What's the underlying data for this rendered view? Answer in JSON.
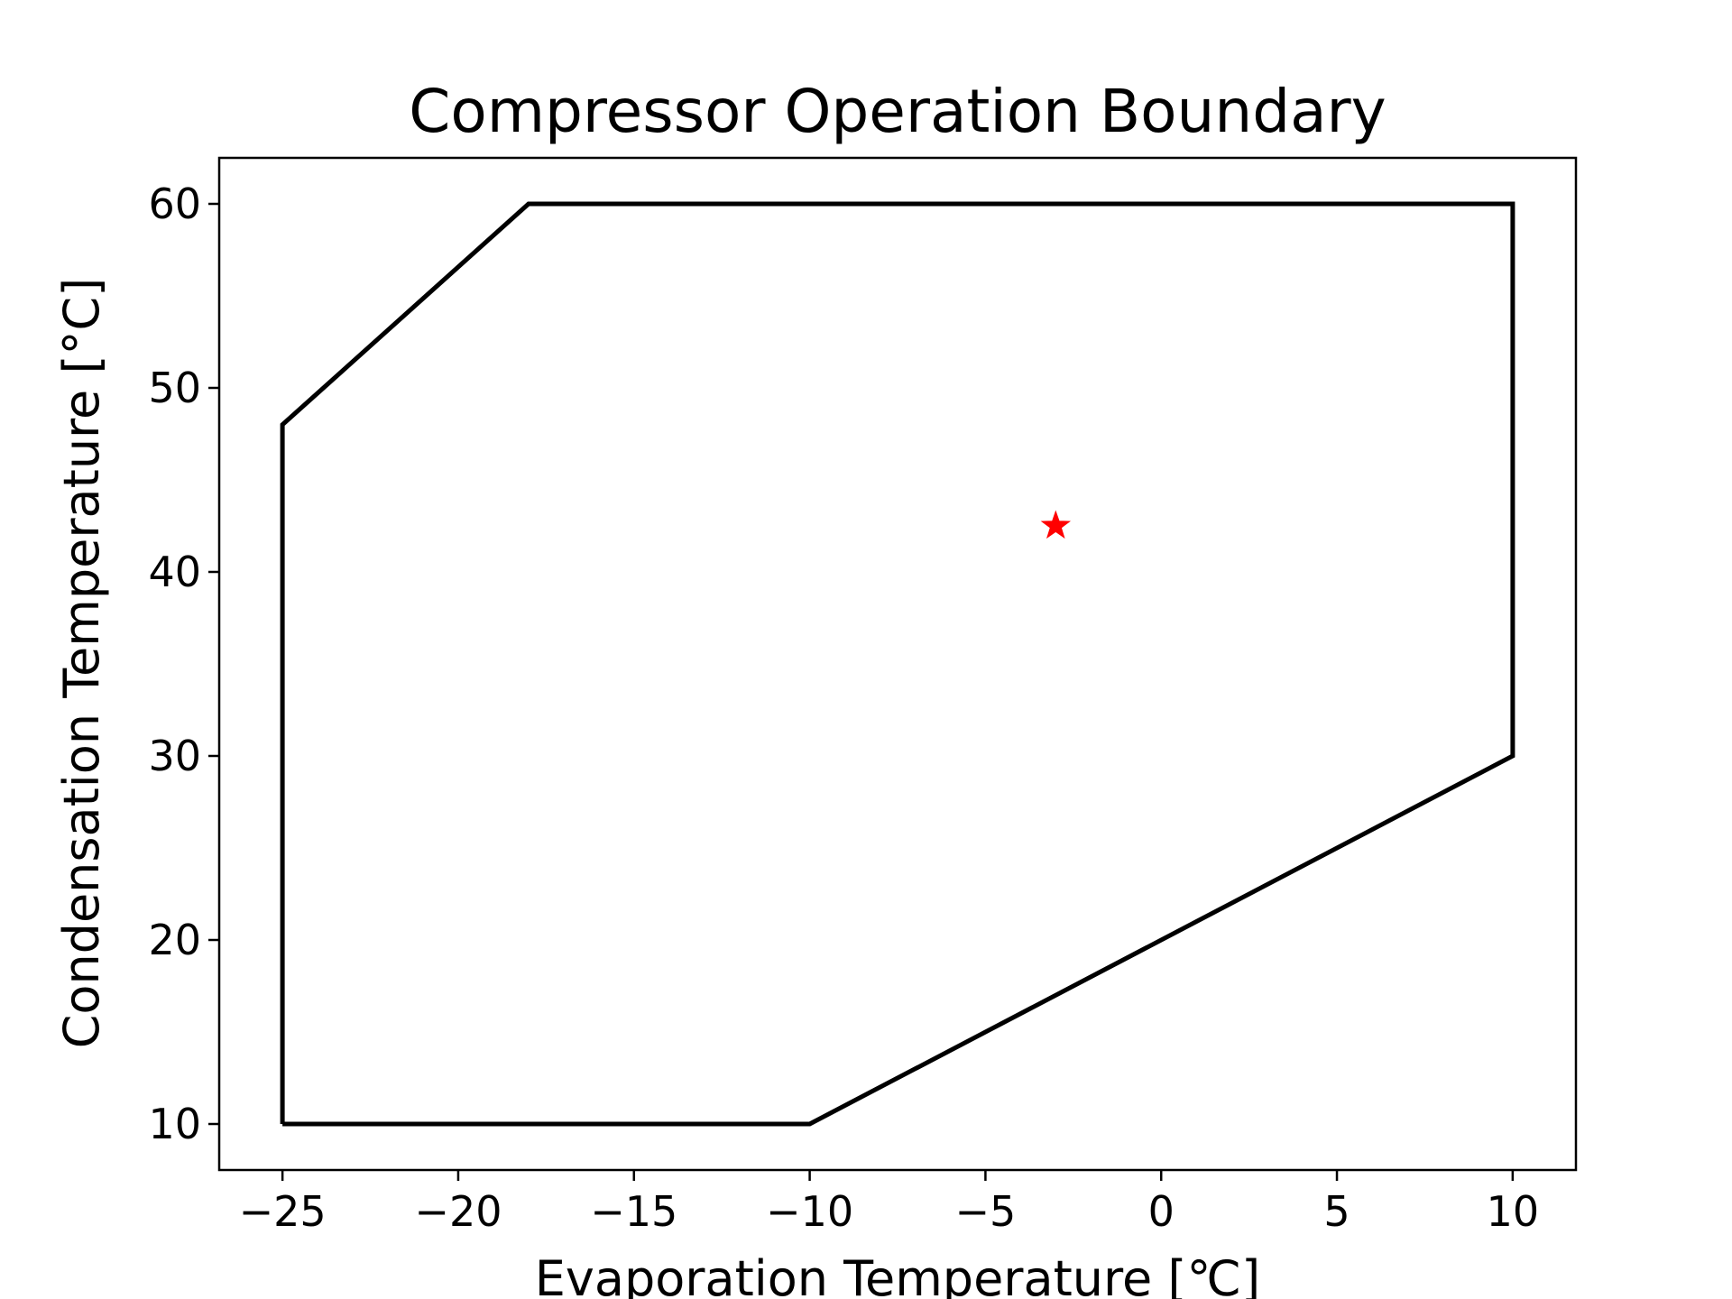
{
  "chart_data": {
    "type": "line",
    "title": "Compressor Operation Boundary",
    "xlabel": "Evaporation Temperature [℃]",
    "ylabel": "Condensation Temperature [°C]",
    "xlim": [
      -26.8,
      11.8
    ],
    "ylim": [
      7.5,
      62.5
    ],
    "xticks": [
      -25,
      -20,
      -15,
      -10,
      -5,
      0,
      5,
      10
    ],
    "yticks": [
      10,
      20,
      30,
      40,
      50,
      60
    ],
    "xtick_labels": [
      "−25",
      "−20",
      "−15",
      "−10",
      "−5",
      "0",
      "5",
      "10"
    ],
    "ytick_labels": [
      "10",
      "20",
      "30",
      "40",
      "50",
      "60"
    ],
    "grid": false,
    "series": [
      {
        "type": "line",
        "color": "#000000",
        "x": [
          -25,
          -10,
          10,
          10,
          -18,
          -25,
          -25
        ],
        "y": [
          10,
          10,
          30,
          60,
          60,
          48,
          10
        ]
      },
      {
        "type": "scatter",
        "marker": "star",
        "color": "#ff0000",
        "x": [
          -3
        ],
        "y": [
          42.5
        ]
      }
    ]
  }
}
